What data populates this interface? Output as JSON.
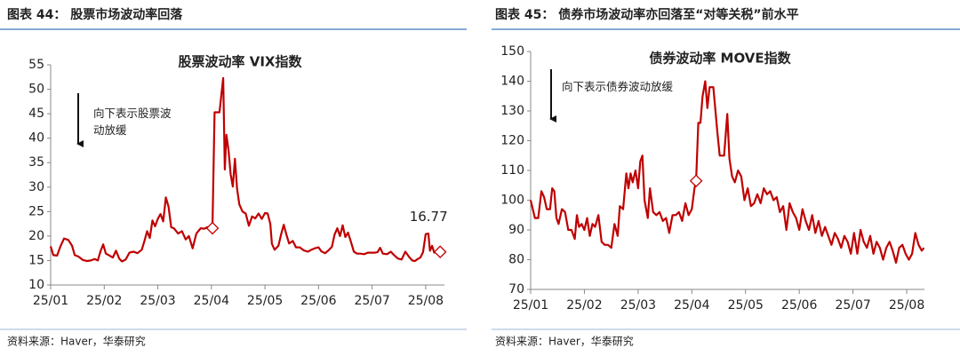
{
  "chart_data": [
    {
      "type": "line",
      "title": "图表 44：  股票市场波动率回落",
      "subtitle": "股票波动率 VIX指数",
      "annotation": "向下表示股票波动放缓",
      "source": "资料来源：Haver，华泰研究",
      "x": [
        1.0,
        1.05,
        1.12,
        1.18,
        1.25,
        1.33,
        1.4,
        1.45,
        1.52,
        1.6,
        1.68,
        1.75,
        1.82,
        1.88,
        1.93,
        1.98,
        2.03,
        2.1,
        2.16,
        2.22,
        2.28,
        2.33,
        2.4,
        2.47,
        2.55,
        2.62,
        2.7,
        2.75,
        2.8,
        2.85,
        2.9,
        2.95,
        3.0,
        3.05,
        3.1,
        3.15,
        3.2,
        3.25,
        3.3,
        3.38,
        3.45,
        3.52,
        3.58,
        3.65,
        3.72,
        3.8,
        3.87,
        3.92,
        4.02,
        4.06,
        4.15,
        4.22,
        4.25,
        4.28,
        4.32,
        4.36,
        4.4,
        4.44,
        4.48,
        4.52,
        4.58,
        4.64,
        4.7,
        4.76,
        4.82,
        4.88,
        4.94,
        5.0,
        5.05,
        5.1,
        5.13,
        5.18,
        5.25,
        5.3,
        5.35,
        5.4,
        5.45,
        5.52,
        5.58,
        5.65,
        5.72,
        5.8,
        5.87,
        5.93,
        6.0,
        6.05,
        6.12,
        6.18,
        6.25,
        6.3,
        6.35,
        6.4,
        6.45,
        6.5,
        6.55,
        6.6,
        6.66,
        6.72,
        6.78,
        6.85,
        6.92,
        6.98,
        7.05,
        7.1,
        7.15,
        7.2,
        7.28,
        7.35,
        7.4,
        7.48,
        7.55,
        7.62,
        7.7,
        7.75,
        7.8,
        7.85,
        7.9,
        7.95,
        8.0,
        8.05,
        8.08,
        8.12,
        8.16,
        8.22,
        8.27
      ],
      "series": [
        {
          "color": "#c00000",
          "values": [
            17.9,
            16.1,
            16.0,
            17.8,
            19.5,
            19.2,
            18.0,
            16.1,
            15.8,
            15.1,
            14.9,
            15.0,
            15.3,
            15.0,
            16.9,
            18.3,
            16.4,
            16.0,
            15.6,
            17.0,
            15.4,
            14.8,
            15.2,
            16.6,
            16.8,
            16.5,
            17.2,
            19.0,
            21.0,
            19.6,
            23.2,
            22.0,
            23.5,
            24.5,
            23.0,
            27.9,
            26.0,
            21.8,
            21.6,
            20.5,
            21.0,
            19.3,
            20.0,
            17.5,
            20.5,
            21.6,
            21.5,
            21.8,
            21.6,
            45.3,
            45.3,
            52.3,
            33.6,
            40.7,
            37.5,
            32.6,
            30.1,
            35.8,
            29.7,
            26.5,
            25.0,
            24.6,
            22.1,
            24.0,
            23.6,
            24.6,
            23.5,
            24.7,
            24.6,
            22.5,
            18.4,
            17.2,
            18.0,
            20.3,
            22.3,
            20.3,
            18.5,
            19.0,
            17.7,
            17.7,
            17.1,
            16.8,
            17.2,
            17.5,
            17.7,
            16.9,
            16.5,
            17.0,
            17.8,
            20.3,
            21.6,
            20.0,
            22.2,
            19.8,
            20.7,
            19.0,
            16.8,
            16.4,
            16.4,
            16.3,
            16.6,
            16.6,
            16.6,
            16.7,
            17.6,
            16.4,
            16.3,
            16.8,
            16.2,
            15.4,
            15.2,
            16.8,
            15.6,
            15.0,
            14.9,
            15.3,
            15.6,
            16.7,
            20.4,
            20.5,
            17.0,
            18.0,
            16.6,
            16.8,
            16.77
          ]
        }
      ],
      "highlights": {
        "x": [
          4.02,
          8.27
        ],
        "values": [
          21.6,
          16.77
        ],
        "value_labels": [
          null,
          "16.77"
        ]
      },
      "xlim": [
        1,
        8.35
      ],
      "xticks": [
        {
          "value": 1,
          "label": "25/01"
        },
        {
          "value": 2,
          "label": "25/02"
        },
        {
          "value": 3,
          "label": "25/03"
        },
        {
          "value": 4,
          "label": "25/04"
        },
        {
          "value": 5,
          "label": "25/05"
        },
        {
          "value": 6,
          "label": "25/06"
        },
        {
          "value": 7,
          "label": "25/07"
        },
        {
          "value": 8,
          "label": "25/08"
        }
      ],
      "ylim": [
        10,
        55
      ],
      "yticks": [
        10,
        15,
        20,
        25,
        30,
        35,
        40,
        45,
        50,
        55
      ],
      "grid": false
    },
    {
      "type": "line",
      "title": "图表 45：  债券市场波动率亦回落至“对等关税”前水平",
      "subtitle": "债券波动率 MOVE指数",
      "annotation": "向下表示债券波动放缓",
      "source": "资料来源：Haver，华泰研究",
      "x": [
        1.0,
        1.04,
        1.08,
        1.14,
        1.2,
        1.25,
        1.3,
        1.36,
        1.4,
        1.44,
        1.48,
        1.52,
        1.58,
        1.64,
        1.7,
        1.76,
        1.82,
        1.86,
        1.9,
        1.95,
        2.0,
        2.05,
        2.1,
        2.15,
        2.2,
        2.26,
        2.32,
        2.38,
        2.44,
        2.5,
        2.56,
        2.62,
        2.66,
        2.72,
        2.78,
        2.82,
        2.86,
        2.9,
        2.95,
        3.0,
        3.04,
        3.08,
        3.12,
        3.18,
        3.22,
        3.28,
        3.34,
        3.4,
        3.46,
        3.52,
        3.58,
        3.64,
        3.7,
        3.76,
        3.82,
        3.88,
        3.94,
        4.0,
        4.05,
        4.08,
        4.12,
        4.16,
        4.2,
        4.25,
        4.29,
        4.33,
        4.4,
        4.44,
        4.48,
        4.52,
        4.6,
        4.66,
        4.7,
        4.75,
        4.8,
        4.86,
        4.92,
        4.98,
        5.04,
        5.1,
        5.16,
        5.22,
        5.28,
        5.34,
        5.4,
        5.46,
        5.52,
        5.58,
        5.64,
        5.7,
        5.76,
        5.82,
        5.88,
        5.94,
        6.0,
        6.06,
        6.12,
        6.18,
        6.24,
        6.3,
        6.36,
        6.42,
        6.48,
        6.54,
        6.6,
        6.66,
        6.72,
        6.78,
        6.84,
        6.9,
        6.96,
        7.02,
        7.08,
        7.14,
        7.2,
        7.26,
        7.32,
        7.38,
        7.44,
        7.5,
        7.56,
        7.62,
        7.68,
        7.74,
        7.8,
        7.86,
        7.92,
        7.98,
        8.04,
        8.1,
        8.16,
        8.22,
        8.28,
        8.32
      ],
      "series": [
        {
          "color": "#c00000",
          "values": [
            100,
            97,
            94,
            94,
            103,
            101,
            97,
            97,
            104,
            103,
            94,
            92,
            97,
            96,
            90,
            90,
            87,
            95,
            91,
            92,
            90,
            94,
            88,
            92,
            91,
            95,
            86,
            85,
            85,
            84,
            92,
            88,
            98,
            97,
            109,
            104,
            109,
            106,
            110,
            104,
            113,
            115,
            100,
            94,
            104,
            96,
            95,
            96,
            93,
            94,
            89,
            95,
            95,
            96,
            93,
            99,
            95,
            97,
            104,
            106.5,
            126,
            126,
            135,
            140,
            131,
            138,
            138,
            130,
            122,
            115,
            115,
            129,
            114,
            108,
            106,
            110,
            108,
            100,
            104,
            98,
            99,
            102,
            99,
            104,
            102,
            103,
            100,
            101,
            96,
            98,
            90,
            99,
            96,
            94,
            90,
            97,
            93,
            90,
            95,
            89,
            93,
            88,
            91,
            88,
            85,
            89,
            87,
            84,
            88,
            86,
            82,
            89,
            82,
            90,
            86,
            84,
            88,
            82,
            86,
            84,
            80,
            84,
            86,
            83,
            79,
            84,
            85,
            82,
            80,
            82,
            89,
            85,
            83,
            84
          ]
        }
      ],
      "highlights": {
        "x": [
          4.08
        ],
        "values": [
          106.5
        ],
        "value_labels": [
          null
        ]
      },
      "xlim": [
        1,
        8.33
      ],
      "xticks": [
        {
          "value": 1,
          "label": "25/01"
        },
        {
          "value": 2,
          "label": "25/02"
        },
        {
          "value": 3,
          "label": "25/03"
        },
        {
          "value": 4,
          "label": "25/04"
        },
        {
          "value": 5,
          "label": "25/05"
        },
        {
          "value": 6,
          "label": "25/06"
        },
        {
          "value": 7,
          "label": "25/07"
        },
        {
          "value": 8,
          "label": "25/08"
        }
      ],
      "ylim": [
        70,
        150
      ],
      "yticks": [
        70,
        80,
        90,
        100,
        110,
        120,
        130,
        140,
        150
      ],
      "grid": false
    }
  ]
}
